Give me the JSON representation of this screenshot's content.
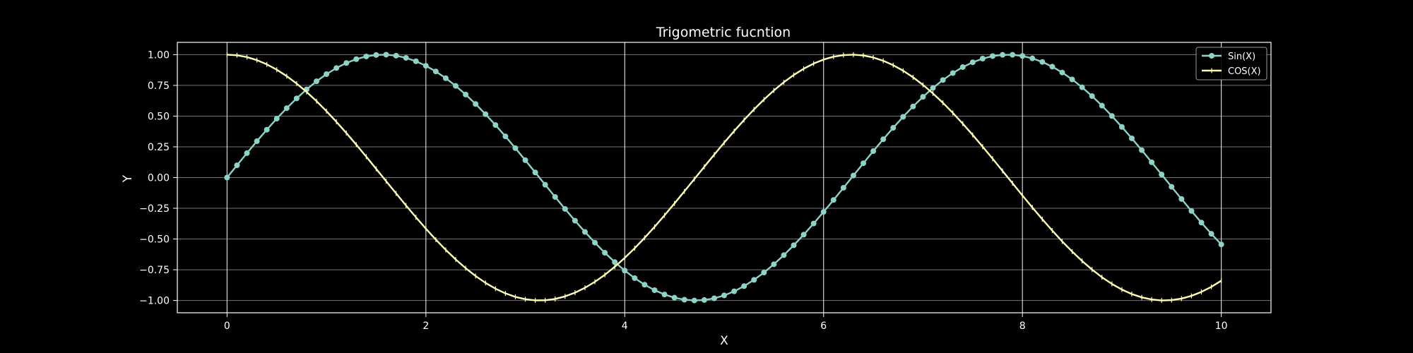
{
  "chart_data": {
    "type": "line",
    "title": "Trigometric fucntion",
    "xlabel": "X",
    "ylabel": "Y",
    "xlim": [
      -0.5,
      10.5
    ],
    "ylim": [
      -1.1,
      1.1
    ],
    "xticks": [
      0,
      2,
      4,
      6,
      8,
      10
    ],
    "xtick_labels": [
      "0",
      "2",
      "4",
      "6",
      "8",
      "10"
    ],
    "yticks": [
      -1.0,
      -0.75,
      -0.5,
      -0.25,
      0.0,
      0.25,
      0.5,
      0.75,
      1.0
    ],
    "ytick_labels": [
      "−1.00",
      "−0.75",
      "−0.50",
      "−0.25",
      "0.00",
      "0.25",
      "0.50",
      "0.75",
      "1.00"
    ],
    "grid": true,
    "legend_position": "top-right",
    "series": [
      {
        "name": "Sin(X)",
        "marker": "circle",
        "color": "#8dd3c7",
        "x": [
          0.0,
          0.1,
          0.2,
          0.3,
          0.4,
          0.5,
          0.6,
          0.7,
          0.8,
          0.9,
          1.0,
          1.1,
          1.2,
          1.3,
          1.4,
          1.5,
          1.6,
          1.7,
          1.8,
          1.9,
          2.0,
          2.1,
          2.2,
          2.3,
          2.4,
          2.5,
          2.6,
          2.7,
          2.8,
          2.9,
          3.0,
          3.1,
          3.2,
          3.3,
          3.4,
          3.5,
          3.6,
          3.7,
          3.8,
          3.9,
          4.0,
          4.1,
          4.2,
          4.3,
          4.4,
          4.5,
          4.6,
          4.7,
          4.8,
          4.9,
          5.0,
          5.1,
          5.2,
          5.3,
          5.4,
          5.5,
          5.6,
          5.7,
          5.8,
          5.9,
          6.0,
          6.1,
          6.2,
          6.3,
          6.4,
          6.5,
          6.6,
          6.7,
          6.8,
          6.9,
          7.0,
          7.1,
          7.2,
          7.3,
          7.4,
          7.5,
          7.6,
          7.7,
          7.8,
          7.9,
          8.0,
          8.1,
          8.2,
          8.3,
          8.4,
          8.5,
          8.6,
          8.7,
          8.8,
          8.9,
          9.0,
          9.1,
          9.2,
          9.3,
          9.4,
          9.5,
          9.6,
          9.7,
          9.8,
          9.9,
          10.0
        ],
        "y": [
          0.0,
          0.0998,
          0.1987,
          0.2955,
          0.3894,
          0.4794,
          0.5646,
          0.6442,
          0.7174,
          0.7833,
          0.8415,
          0.8912,
          0.932,
          0.9636,
          0.9854,
          0.9975,
          0.9996,
          0.9917,
          0.9738,
          0.9463,
          0.9093,
          0.8632,
          0.8085,
          0.7457,
          0.6755,
          0.5985,
          0.5155,
          0.4274,
          0.335,
          0.2392,
          0.1411,
          0.0416,
          -0.0584,
          -0.1577,
          -0.2555,
          -0.3508,
          -0.4425,
          -0.5298,
          -0.6119,
          -0.6878,
          -0.7568,
          -0.8183,
          -0.8716,
          -0.9162,
          -0.9516,
          -0.9775,
          -0.9937,
          -0.9999,
          -0.9962,
          -0.9825,
          -0.9589,
          -0.9258,
          -0.8835,
          -0.8323,
          -0.7728,
          -0.7055,
          -0.6313,
          -0.5507,
          -0.4646,
          -0.3739,
          -0.2794,
          -0.1822,
          -0.0831,
          0.0168,
          0.1165,
          0.2151,
          0.3115,
          0.4048,
          0.4941,
          0.5784,
          0.657,
          0.729,
          0.7937,
          0.8504,
          0.8987,
          0.938,
          0.9679,
          0.9882,
          0.9985,
          0.9989,
          0.9894,
          0.9699,
          0.9407,
          0.9022,
          0.8546,
          0.7985,
          0.7344,
          0.663,
          0.5849,
          0.501,
          0.4121,
          0.319,
          0.2229,
          0.1245,
          0.0248,
          -0.0752,
          -0.1743,
          -0.2718,
          -0.3665,
          -0.4575,
          -0.544
        ]
      },
      {
        "name": "COS(X)",
        "marker": "tick",
        "color": "#ffffb3",
        "x": [
          0.0,
          0.1,
          0.2,
          0.3,
          0.4,
          0.5,
          0.6,
          0.7,
          0.8,
          0.9,
          1.0,
          1.1,
          1.2,
          1.3,
          1.4,
          1.5,
          1.6,
          1.7,
          1.8,
          1.9,
          2.0,
          2.1,
          2.2,
          2.3,
          2.4,
          2.5,
          2.6,
          2.7,
          2.8,
          2.9,
          3.0,
          3.1,
          3.2,
          3.3,
          3.4,
          3.5,
          3.6,
          3.7,
          3.8,
          3.9,
          4.0,
          4.1,
          4.2,
          4.3,
          4.4,
          4.5,
          4.6,
          4.7,
          4.8,
          4.9,
          5.0,
          5.1,
          5.2,
          5.3,
          5.4,
          5.5,
          5.6,
          5.7,
          5.8,
          5.9,
          6.0,
          6.1,
          6.2,
          6.3,
          6.4,
          6.5,
          6.6,
          6.7,
          6.8,
          6.9,
          7.0,
          7.1,
          7.2,
          7.3,
          7.4,
          7.5,
          7.6,
          7.7,
          7.8,
          7.9,
          8.0,
          8.1,
          8.2,
          8.3,
          8.4,
          8.5,
          8.6,
          8.7,
          8.8,
          8.9,
          9.0,
          9.1,
          9.2,
          9.3,
          9.4,
          9.5,
          9.6,
          9.7,
          9.8,
          9.9,
          10.0
        ],
        "y": [
          1.0,
          0.995,
          0.9801,
          0.9553,
          0.9211,
          0.8776,
          0.8253,
          0.7648,
          0.6967,
          0.6216,
          0.5403,
          0.4536,
          0.3624,
          0.2675,
          0.17,
          0.0707,
          -0.0292,
          -0.1288,
          -0.2272,
          -0.3233,
          -0.4161,
          -0.5048,
          -0.5885,
          -0.6663,
          -0.7374,
          -0.8011,
          -0.8569,
          -0.9041,
          -0.9422,
          -0.971,
          -0.99,
          -0.9991,
          -0.9983,
          -0.9875,
          -0.9668,
          -0.9365,
          -0.8968,
          -0.8481,
          -0.791,
          -0.7259,
          -0.6536,
          -0.5748,
          -0.4903,
          -0.4008,
          -0.3073,
          -0.2108,
          -0.1122,
          -0.0124,
          0.0875,
          0.1865,
          0.2837,
          0.378,
          0.4685,
          0.5544,
          0.6347,
          0.7087,
          0.7756,
          0.8347,
          0.8855,
          0.9275,
          0.9602,
          0.9833,
          0.9965,
          0.9999,
          0.9932,
          0.9766,
          0.9502,
          0.9144,
          0.8694,
          0.8157,
          0.7539,
          0.6845,
          0.6084,
          0.5261,
          0.4385,
          0.3466,
          0.2513,
          0.1534,
          0.054,
          -0.046,
          -0.1455,
          -0.2435,
          -0.3392,
          -0.4314,
          -0.5193,
          -0.602,
          -0.6787,
          -0.7486,
          -0.8111,
          -0.8654,
          -0.9111,
          -0.9477,
          -0.9748,
          -0.9922,
          -0.9997,
          -0.9972,
          -0.9847,
          -0.9624,
          -0.9304,
          -0.8892,
          -0.8391
        ]
      }
    ]
  }
}
